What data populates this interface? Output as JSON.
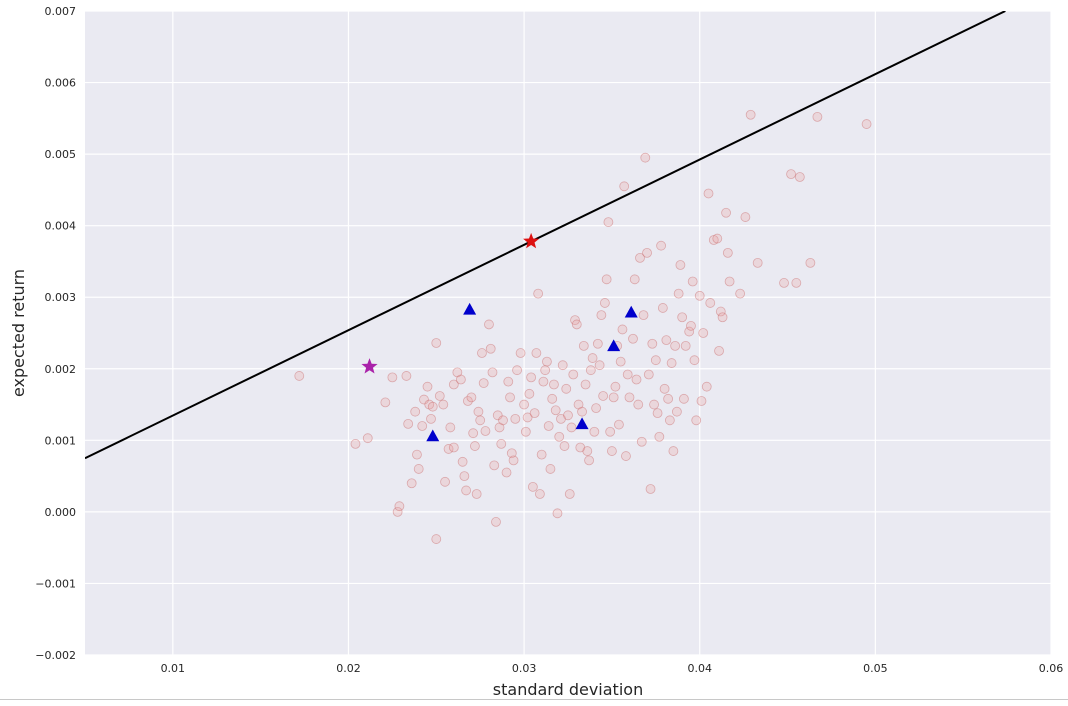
{
  "chart_data": {
    "type": "scatter",
    "title": "",
    "xlabel": "standard deviation",
    "ylabel": "expected return",
    "xlim": [
      0.005,
      0.06
    ],
    "ylim": [
      -0.002,
      0.007
    ],
    "grid": true,
    "style": {
      "background": "#eaeaf2",
      "grid_color": "#ffffff"
    },
    "x_ticks": [
      0.01,
      0.02,
      0.03,
      0.04,
      0.05,
      0.06
    ],
    "x_tick_labels": [
      "0.01",
      "0.02",
      "0.03",
      "0.04",
      "0.05",
      "0.06"
    ],
    "y_ticks": [
      -0.002,
      -0.001,
      0.0,
      0.001,
      0.002,
      0.003,
      0.004,
      0.005,
      0.006,
      0.007
    ],
    "y_tick_labels": [
      "−0.002",
      "−0.001",
      "0.000",
      "0.001",
      "0.002",
      "0.003",
      "0.004",
      "0.005",
      "0.006",
      "0.007"
    ],
    "line": {
      "color": "#000000",
      "points": [
        [
          0.005,
          0.00075
        ],
        [
          0.0574,
          0.007
        ]
      ]
    },
    "random_portfolios": {
      "color": "#e8a0a0",
      "marker": "circle",
      "points": [
        [
          0.0172,
          0.0019
        ],
        [
          0.0204,
          0.00095
        ],
        [
          0.0211,
          0.00103
        ],
        [
          0.0221,
          0.00153
        ],
        [
          0.0225,
          0.00188
        ],
        [
          0.0228,
          0.0
        ],
        [
          0.0229,
          8e-05
        ],
        [
          0.0233,
          0.0019
        ],
        [
          0.0234,
          0.00123
        ],
        [
          0.0236,
          0.0004
        ],
        [
          0.0238,
          0.0014
        ],
        [
          0.0239,
          0.0008
        ],
        [
          0.024,
          0.0006
        ],
        [
          0.0242,
          0.0012
        ],
        [
          0.0243,
          0.00157
        ],
        [
          0.0245,
          0.00175
        ],
        [
          0.0246,
          0.0015
        ],
        [
          0.0247,
          0.0013
        ],
        [
          0.0248,
          0.00147
        ],
        [
          0.025,
          0.00236
        ],
        [
          0.025,
          -0.00038
        ],
        [
          0.0252,
          0.00162
        ],
        [
          0.0254,
          0.0015
        ],
        [
          0.0255,
          0.00042
        ],
        [
          0.0257,
          0.00088
        ],
        [
          0.0258,
          0.00118
        ],
        [
          0.026,
          0.0009
        ],
        [
          0.026,
          0.00178
        ],
        [
          0.0262,
          0.00195
        ],
        [
          0.0264,
          0.00185
        ],
        [
          0.0265,
          0.0007
        ],
        [
          0.0266,
          0.0005
        ],
        [
          0.0267,
          0.0003
        ],
        [
          0.0268,
          0.00155
        ],
        [
          0.027,
          0.0016
        ],
        [
          0.0271,
          0.0011
        ],
        [
          0.0272,
          0.00092
        ],
        [
          0.0273,
          0.00025
        ],
        [
          0.0274,
          0.0014
        ],
        [
          0.0275,
          0.00128
        ],
        [
          0.0276,
          0.00222
        ],
        [
          0.0277,
          0.0018
        ],
        [
          0.0278,
          0.00113
        ],
        [
          0.028,
          0.00262
        ],
        [
          0.0281,
          0.00228
        ],
        [
          0.0282,
          0.00195
        ],
        [
          0.0283,
          0.00065
        ],
        [
          0.0284,
          -0.00014
        ],
        [
          0.0285,
          0.00135
        ],
        [
          0.0286,
          0.00118
        ],
        [
          0.0287,
          0.00095
        ],
        [
          0.0288,
          0.00128
        ],
        [
          0.029,
          0.00055
        ],
        [
          0.0291,
          0.00182
        ],
        [
          0.0292,
          0.0016
        ],
        [
          0.0293,
          0.00082
        ],
        [
          0.0294,
          0.00072
        ],
        [
          0.0295,
          0.0013
        ],
        [
          0.0296,
          0.00198
        ],
        [
          0.0298,
          0.00222
        ],
        [
          0.03,
          0.0015
        ],
        [
          0.0301,
          0.00112
        ],
        [
          0.0302,
          0.00132
        ],
        [
          0.0303,
          0.00165
        ],
        [
          0.0304,
          0.00188
        ],
        [
          0.0305,
          0.00035
        ],
        [
          0.0306,
          0.00138
        ],
        [
          0.0307,
          0.00222
        ],
        [
          0.0308,
          0.00305
        ],
        [
          0.0309,
          0.00025
        ],
        [
          0.031,
          0.0008
        ],
        [
          0.0311,
          0.00182
        ],
        [
          0.0312,
          0.00198
        ],
        [
          0.0313,
          0.0021
        ],
        [
          0.0314,
          0.0012
        ],
        [
          0.0315,
          0.0006
        ],
        [
          0.0316,
          0.00158
        ],
        [
          0.0317,
          0.00178
        ],
        [
          0.0318,
          0.00142
        ],
        [
          0.0319,
          -2e-05
        ],
        [
          0.032,
          0.00105
        ],
        [
          0.0321,
          0.0013
        ],
        [
          0.0322,
          0.00205
        ],
        [
          0.0323,
          0.00092
        ],
        [
          0.0324,
          0.00172
        ],
        [
          0.0325,
          0.00135
        ],
        [
          0.0326,
          0.00025
        ],
        [
          0.0327,
          0.00118
        ],
        [
          0.0328,
          0.00192
        ],
        [
          0.0329,
          0.00268
        ],
        [
          0.033,
          0.00262
        ],
        [
          0.0331,
          0.0015
        ],
        [
          0.0332,
          0.0009
        ],
        [
          0.0333,
          0.0014
        ],
        [
          0.0334,
          0.00232
        ],
        [
          0.0335,
          0.00178
        ],
        [
          0.0336,
          0.00085
        ],
        [
          0.0337,
          0.00072
        ],
        [
          0.0338,
          0.00198
        ],
        [
          0.0339,
          0.00215
        ],
        [
          0.034,
          0.00112
        ],
        [
          0.0341,
          0.00145
        ],
        [
          0.0342,
          0.00235
        ],
        [
          0.0343,
          0.00205
        ],
        [
          0.0344,
          0.00275
        ],
        [
          0.0345,
          0.00162
        ],
        [
          0.0346,
          0.00292
        ],
        [
          0.0347,
          0.00325
        ],
        [
          0.0348,
          0.00405
        ],
        [
          0.0349,
          0.00112
        ],
        [
          0.035,
          0.00085
        ],
        [
          0.0351,
          0.0016
        ],
        [
          0.0352,
          0.00175
        ],
        [
          0.0353,
          0.00232
        ],
        [
          0.0354,
          0.00122
        ],
        [
          0.0355,
          0.0021
        ],
        [
          0.0356,
          0.00255
        ],
        [
          0.0357,
          0.00455
        ],
        [
          0.0358,
          0.00078
        ],
        [
          0.0359,
          0.00192
        ],
        [
          0.036,
          0.0016
        ],
        [
          0.0362,
          0.00242
        ],
        [
          0.0363,
          0.00325
        ],
        [
          0.0364,
          0.00185
        ],
        [
          0.0365,
          0.0015
        ],
        [
          0.0366,
          0.00355
        ],
        [
          0.0367,
          0.00098
        ],
        [
          0.0368,
          0.00275
        ],
        [
          0.0369,
          0.00495
        ],
        [
          0.037,
          0.00362
        ],
        [
          0.0371,
          0.00192
        ],
        [
          0.0372,
          0.00032
        ],
        [
          0.0373,
          0.00235
        ],
        [
          0.0374,
          0.0015
        ],
        [
          0.0375,
          0.00212
        ],
        [
          0.0376,
          0.00138
        ],
        [
          0.0377,
          0.00105
        ],
        [
          0.0378,
          0.00372
        ],
        [
          0.0379,
          0.00285
        ],
        [
          0.038,
          0.00172
        ],
        [
          0.0381,
          0.0024
        ],
        [
          0.0382,
          0.00158
        ],
        [
          0.0383,
          0.00128
        ],
        [
          0.0384,
          0.00208
        ],
        [
          0.0385,
          0.00085
        ],
        [
          0.0386,
          0.00232
        ],
        [
          0.0387,
          0.0014
        ],
        [
          0.0388,
          0.00305
        ],
        [
          0.0389,
          0.00345
        ],
        [
          0.039,
          0.00272
        ],
        [
          0.0391,
          0.00158
        ],
        [
          0.0392,
          0.00232
        ],
        [
          0.0394,
          0.00252
        ],
        [
          0.0395,
          0.0026
        ],
        [
          0.0396,
          0.00322
        ],
        [
          0.0397,
          0.00212
        ],
        [
          0.0398,
          0.00128
        ],
        [
          0.04,
          0.00302
        ],
        [
          0.0401,
          0.00155
        ],
        [
          0.0402,
          0.0025
        ],
        [
          0.0404,
          0.00175
        ],
        [
          0.0405,
          0.00445
        ],
        [
          0.0406,
          0.00292
        ],
        [
          0.0408,
          0.0038
        ],
        [
          0.041,
          0.00382
        ],
        [
          0.0411,
          0.00225
        ],
        [
          0.0412,
          0.0028
        ],
        [
          0.0413,
          0.00272
        ],
        [
          0.0415,
          0.00418
        ],
        [
          0.0416,
          0.00362
        ],
        [
          0.0417,
          0.00322
        ],
        [
          0.0423,
          0.00305
        ],
        [
          0.0426,
          0.00412
        ],
        [
          0.0429,
          0.00555
        ],
        [
          0.0433,
          0.00348
        ],
        [
          0.0448,
          0.0032
        ],
        [
          0.0452,
          0.00472
        ],
        [
          0.0455,
          0.0032
        ],
        [
          0.0457,
          0.00468
        ],
        [
          0.0463,
          0.00348
        ],
        [
          0.0467,
          0.00552
        ],
        [
          0.0495,
          0.00542
        ]
      ]
    },
    "assets": {
      "color": "#0000cc",
      "marker": "triangle",
      "points": [
        [
          0.0248,
          0.00106
        ],
        [
          0.0269,
          0.00283
        ],
        [
          0.0333,
          0.00123
        ],
        [
          0.0351,
          0.00232
        ],
        [
          0.0361,
          0.00279
        ]
      ]
    },
    "tangency_portfolio": {
      "color": "#dd1111",
      "marker": "star",
      "x": 0.0304,
      "y": 0.00378
    },
    "min_variance_portfolio": {
      "color": "#aa22aa",
      "marker": "star",
      "x": 0.0212,
      "y": 0.00203
    }
  }
}
